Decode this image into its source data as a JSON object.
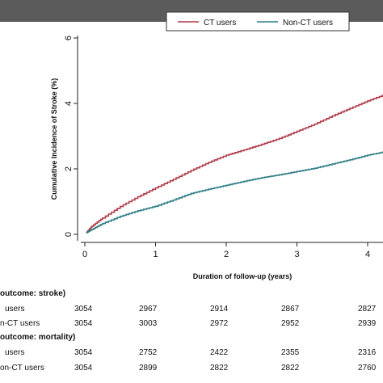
{
  "chart_data": {
    "type": "line",
    "ylabel": "Cumulative Incidence of Stroke (%)",
    "xlabel": "Duration of follow-up (years)",
    "xlim": [
      0,
      4.3
    ],
    "ylim": [
      0,
      6
    ],
    "x_ticks": [
      "0",
      "1",
      "2",
      "3",
      "4"
    ],
    "y_ticks": [
      "0",
      "2",
      "4",
      "6"
    ],
    "legend_position": "top-right",
    "series": [
      {
        "name": "CT users",
        "color": "#b03a48",
        "x": [
          0.02,
          0.1,
          0.25,
          0.5,
          0.75,
          1.0,
          1.25,
          1.5,
          1.75,
          2.0,
          2.25,
          2.5,
          2.75,
          3.0,
          3.25,
          3.5,
          3.75,
          4.0,
          4.25,
          4.3
        ],
        "y": [
          0.05,
          0.25,
          0.5,
          0.85,
          1.15,
          1.42,
          1.68,
          1.95,
          2.2,
          2.42,
          2.58,
          2.75,
          2.93,
          3.15,
          3.37,
          3.62,
          3.85,
          4.08,
          4.28,
          4.32
        ]
      },
      {
        "name": "Non-CT users",
        "color": "#2f7f86",
        "x": [
          0.02,
          0.1,
          0.25,
          0.5,
          0.75,
          1.0,
          1.25,
          1.5,
          1.75,
          2.0,
          2.25,
          2.5,
          2.75,
          3.0,
          3.25,
          3.5,
          3.75,
          4.0,
          4.25,
          4.3
        ],
        "y": [
          0.05,
          0.15,
          0.33,
          0.55,
          0.72,
          0.86,
          1.05,
          1.25,
          1.38,
          1.5,
          1.62,
          1.73,
          1.82,
          1.92,
          2.02,
          2.15,
          2.28,
          2.42,
          2.53,
          2.55
        ]
      }
    ]
  },
  "risk_table": {
    "sections": [
      {
        "header": "outcome: stroke)",
        "rows": [
          {
            "label": "users",
            "values": [
              "3054",
              "2967",
              "2914",
              "2867",
              "2827"
            ]
          },
          {
            "label": "n-CT users",
            "values": [
              "3054",
              "3003",
              "2972",
              "2952",
              "2939"
            ]
          }
        ]
      },
      {
        "header": "outcome: mortality)",
        "rows": [
          {
            "label": "users",
            "values": [
              "3054",
              "2752",
              "2422",
              "2355",
              "2316"
            ]
          },
          {
            "label": "on-CT users",
            "values": [
              "3054",
              "2899",
              "2822",
              "2822",
              "2760"
            ]
          }
        ]
      }
    ]
  }
}
